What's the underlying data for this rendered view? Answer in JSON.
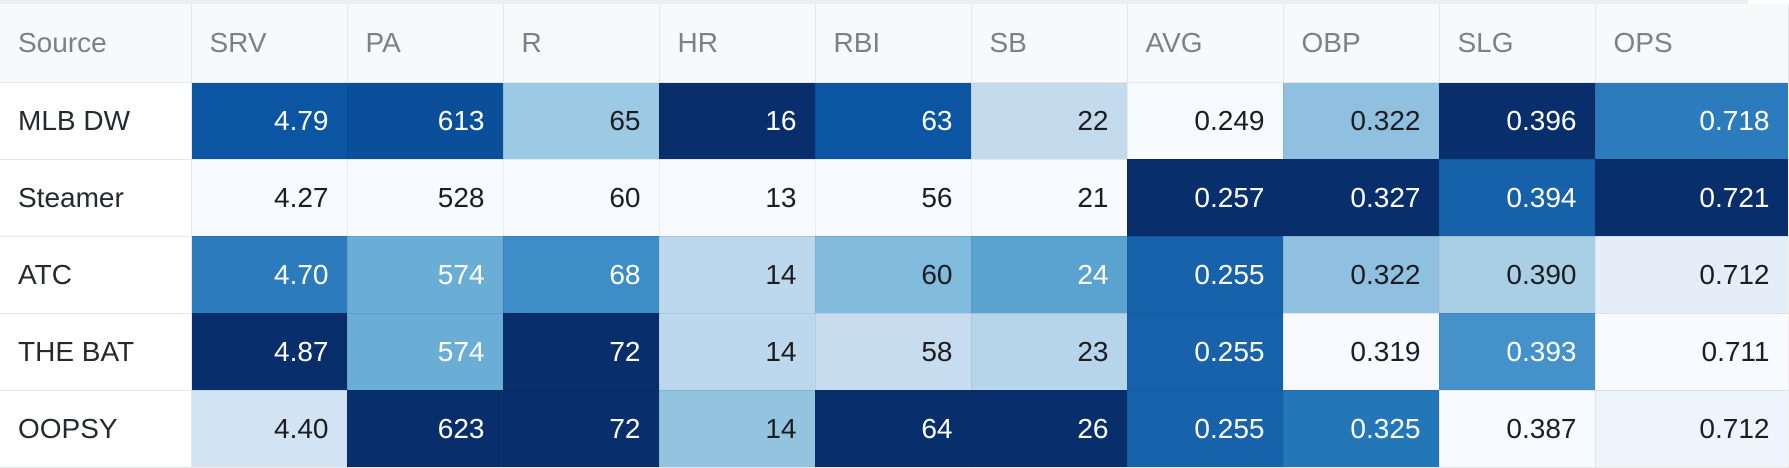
{
  "table": {
    "headers": [
      "Source",
      "SRV",
      "PA",
      "R",
      "HR",
      "RBI",
      "SB",
      "AVG",
      "OBP",
      "SLG",
      "OPS"
    ],
    "rows": [
      {
        "source": "MLB DW",
        "values": [
          "4.79",
          "613",
          "65",
          "16",
          "63",
          "22",
          "0.249",
          "0.322",
          "0.396",
          "0.718"
        ],
        "bg": [
          "#0b55a3",
          "#0b4f9a",
          "#9cc9e3",
          "#082f6b",
          "#0b55a3",
          "#c4dbee",
          "#f7fbff",
          "#8fc0df",
          "#082f6b",
          "#2c7cbd"
        ],
        "fg": [
          "#ffffff",
          "#ffffff",
          "#1b1d21",
          "#ffffff",
          "#ffffff",
          "#1b1d21",
          "#1b1d21",
          "#1b1d21",
          "#ffffff",
          "#ffffff"
        ]
      },
      {
        "source": "Steamer",
        "values": [
          "4.27",
          "528",
          "60",
          "13",
          "56",
          "21",
          "0.257",
          "0.327",
          "0.394",
          "0.721"
        ],
        "bg": [
          "#f7fbff",
          "#f7fbff",
          "#f7fbff",
          "#f7fbff",
          "#f7fbff",
          "#f7fbff",
          "#082f6b",
          "#082f6b",
          "#1761aa",
          "#082f6b"
        ],
        "fg": [
          "#1b1d21",
          "#1b1d21",
          "#1b1d21",
          "#1b1d21",
          "#1b1d21",
          "#1b1d21",
          "#ffffff",
          "#ffffff",
          "#ffffff",
          "#ffffff"
        ]
      },
      {
        "source": "ATC",
        "values": [
          "4.70",
          "574",
          "68",
          "14",
          "60",
          "24",
          "0.255",
          "0.322",
          "0.390",
          "0.712"
        ],
        "bg": [
          "#2c7cbd",
          "#6aaed6",
          "#3d8dc6",
          "#bdd8ec",
          "#80bbdd",
          "#5aa2d0",
          "#1762ab",
          "#8fc0df",
          "#a9cfe5",
          "#e3eef8"
        ],
        "fg": [
          "#ffffff",
          "#ffffff",
          "#ffffff",
          "#1b1d21",
          "#1b1d21",
          "#ffffff",
          "#ffffff",
          "#1b1d21",
          "#1b1d21",
          "#1b1d21"
        ]
      },
      {
        "source": "THE BAT",
        "values": [
          "4.87",
          "574",
          "72",
          "14",
          "58",
          "23",
          "0.255",
          "0.319",
          "0.393",
          "0.711"
        ],
        "bg": [
          "#082f6b",
          "#6aaed6",
          "#082f6b",
          "#bdd8ec",
          "#c8dcef",
          "#b7d5ea",
          "#1762ab",
          "#f7fbff",
          "#4492c9",
          "#f7fbff"
        ],
        "fg": [
          "#ffffff",
          "#ffffff",
          "#ffffff",
          "#1b1d21",
          "#1b1d21",
          "#1b1d21",
          "#ffffff",
          "#1b1d21",
          "#ffffff",
          "#1b1d21"
        ]
      },
      {
        "source": "OOPSY",
        "values": [
          "4.40",
          "623",
          "72",
          "14",
          "64",
          "26",
          "0.255",
          "0.325",
          "0.387",
          "0.712"
        ],
        "bg": [
          "#d2e3f3",
          "#082f6b",
          "#082f6b",
          "#92c3df",
          "#082f6b",
          "#082f6b",
          "#1762ab",
          "#2377b8",
          "#f7fbff",
          "#edf4fb"
        ],
        "fg": [
          "#1b1d21",
          "#ffffff",
          "#ffffff",
          "#1b1d21",
          "#ffffff",
          "#ffffff",
          "#ffffff",
          "#ffffff",
          "#1b1d21",
          "#1b1d21"
        ]
      }
    ]
  }
}
